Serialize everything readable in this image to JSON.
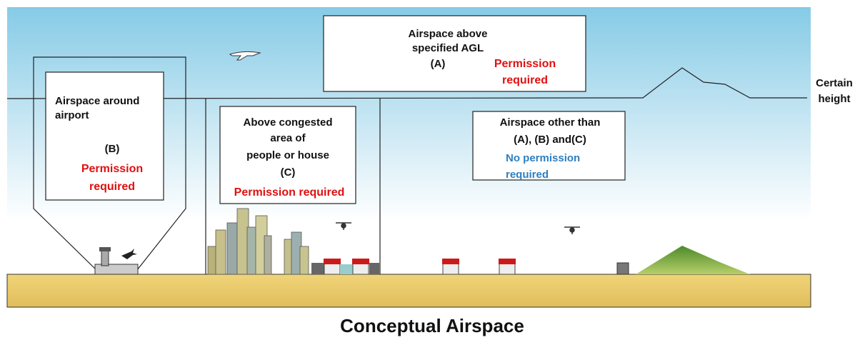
{
  "title": "Conceptual Airspace",
  "height_label": [
    "Certain",
    "height"
  ],
  "regions": [
    {
      "label_lines": [
        "Airspace above",
        "specified AGL",
        "(A)"
      ],
      "permission_lines": [
        "Permission",
        "required"
      ]
    },
    {
      "label_lines": [
        "Airspace around",
        "airport",
        "(B)"
      ],
      "permission_lines": [
        "Permission",
        "required"
      ]
    },
    {
      "label_lines": [
        "Above congested",
        "area of",
        "people or house",
        "(C)"
      ],
      "permission_lines": [
        "Permission required"
      ]
    },
    {
      "label_lines": [
        "Airspace other than",
        "(A), (B) and(C)"
      ],
      "permission_lines": [
        "No permission",
        "required"
      ]
    }
  ]
}
